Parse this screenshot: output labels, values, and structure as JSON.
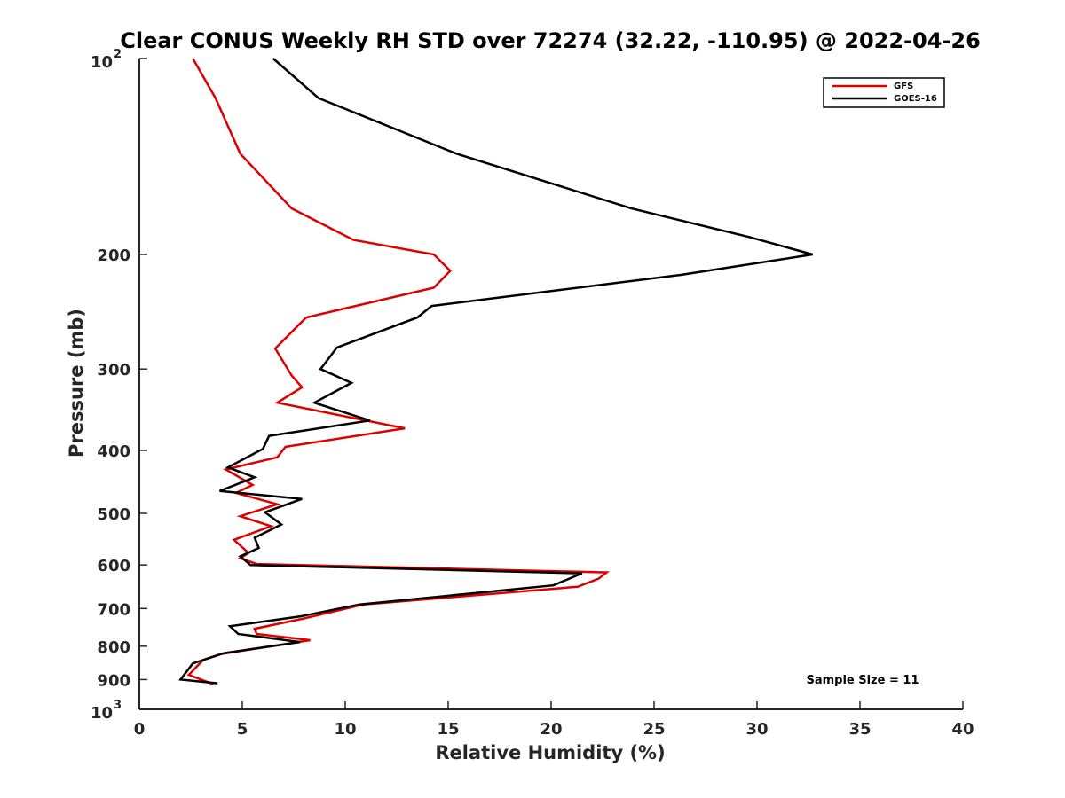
{
  "chart_data": {
    "type": "line",
    "title": "Clear CONUS Weekly RH STD over 72274 (32.22, -110.95) @ 2022-04-26",
    "xlabel": "Relative Humidity (%)",
    "ylabel": "Pressure (mb)",
    "xlim": [
      0,
      40
    ],
    "ylim": [
      100,
      1000
    ],
    "y_scale": "log",
    "y_reversed": true,
    "x_ticks": [
      "0",
      "5",
      "10",
      "15",
      "20",
      "25",
      "30",
      "35",
      "40"
    ],
    "x_tick_values": [
      0,
      5,
      10,
      15,
      20,
      25,
      30,
      35,
      40
    ],
    "y_ticks": [
      {
        "value": 100,
        "base": "10",
        "exp": "2"
      },
      {
        "value": 200,
        "label": "200"
      },
      {
        "value": 300,
        "label": "300"
      },
      {
        "value": 400,
        "label": "400"
      },
      {
        "value": 500,
        "label": "500"
      },
      {
        "value": 600,
        "label": "600"
      },
      {
        "value": 700,
        "label": "700"
      },
      {
        "value": 800,
        "label": "800"
      },
      {
        "value": 900,
        "label": "900"
      },
      {
        "value": 1000,
        "base": "10",
        "exp": "3"
      }
    ],
    "legend_position": "top-right",
    "annotation": "Sample Size = 11",
    "series": [
      {
        "name": "GFS",
        "color": "#dd0000",
        "x": [
          2.6,
          3.7,
          4.9,
          7.4,
          10.4,
          14.3,
          15.1,
          14.3,
          8.1,
          6.6,
          7.4,
          7.9,
          6.7,
          12.9,
          7.1,
          6.7,
          4.2,
          5.5,
          4.7,
          6.7,
          4.9,
          6.4,
          4.6,
          5.3,
          4.9,
          5.7,
          22.7,
          22.3,
          21.3,
          10.9,
          8.0,
          5.6,
          5.7,
          8.3,
          4.0,
          3.1,
          2.4,
          3.6
        ],
        "y": [
          100,
          115,
          140,
          170,
          190,
          200,
          212,
          225,
          250,
          279,
          307,
          320,
          338,
          370,
          395,
          410,
          428,
          452,
          465,
          484,
          505,
          523,
          549,
          575,
          586,
          598,
          616,
          630,
          648,
          690,
          725,
          752,
          766,
          783,
          822,
          840,
          885,
          915
        ]
      },
      {
        "name": "GOES-16",
        "color": "#000000",
        "x": [
          6.5,
          8.7,
          15.4,
          23.9,
          29.6,
          32.7,
          26.3,
          14.2,
          13.5,
          9.6,
          8.8,
          10.3,
          8.5,
          11.2,
          6.3,
          6.0,
          4.3,
          5.6,
          3.9,
          7.9,
          6.1,
          6.9,
          5.6,
          5.8,
          4.9,
          5.4,
          21.5,
          20.1,
          10.7,
          7.8,
          4.4,
          4.8,
          7.8,
          4.1,
          2.6,
          2.0,
          3.8
        ],
        "y": [
          100,
          115,
          140,
          170,
          188,
          200,
          215,
          240,
          250,
          278,
          300,
          315,
          338,
          360,
          380,
          398,
          425,
          440,
          462,
          475,
          498,
          520,
          545,
          565,
          582,
          600,
          618,
          645,
          690,
          720,
          745,
          766,
          788,
          820,
          850,
          900,
          912
        ]
      }
    ]
  }
}
